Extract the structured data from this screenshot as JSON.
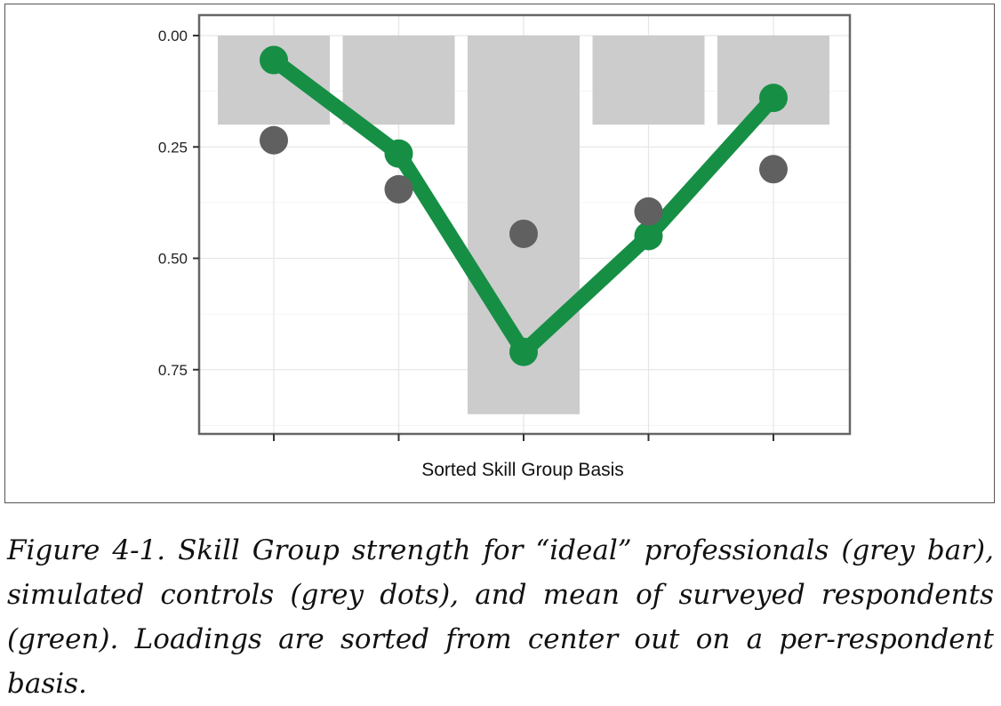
{
  "chart_data": {
    "type": "bar",
    "categories": [
      "",
      "",
      "",
      "",
      ""
    ],
    "xlabel": "Sorted Skill Group Basis",
    "ylabel": "",
    "title": "",
    "ylim": [
      0,
      0.9
    ],
    "y_reversed": true,
    "y_ticks": [
      "0.00",
      "0.25",
      "0.50",
      "0.75"
    ],
    "y_tick_values": [
      0,
      0.25,
      0.5,
      0.75
    ],
    "grid": true,
    "series": [
      {
        "kind": "bar",
        "color": "#cccccc",
        "values": [
          0.2,
          0.2,
          0.85,
          0.2,
          0.2
        ]
      },
      {
        "kind": "scatter",
        "color": "#606060",
        "values": [
          0.235,
          0.345,
          0.445,
          0.395,
          0.3
        ]
      },
      {
        "kind": "line",
        "color": "#168f45",
        "values": [
          0.055,
          0.265,
          0.71,
          0.45,
          0.14
        ]
      }
    ]
  },
  "caption": "Figure 4-1. Skill Group strength for “ideal” professionals (grey bar), simulated controls (grey dots), and mean of surveyed respondents (green). Loadings are sorted from center out on a per-respondent basis."
}
